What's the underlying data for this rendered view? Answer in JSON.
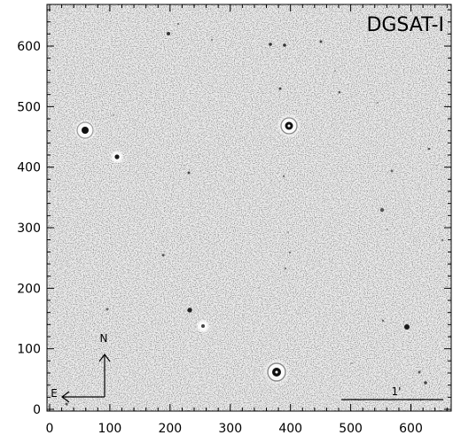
{
  "image": {
    "title": "DGSAT-I",
    "compass": {
      "north": "N",
      "east": "E"
    },
    "scale_bar": {
      "label": "1'"
    },
    "x_axis": {
      "ticks": [
        "0",
        "100",
        "200",
        "300",
        "400",
        "500",
        "600"
      ]
    },
    "y_axis": {
      "ticks": [
        "0",
        "100",
        "200",
        "300",
        "400",
        "500",
        "600"
      ]
    },
    "colors": {
      "background": "#f2f2f2",
      "ink": "#000000",
      "halo": "#ffffff"
    }
  }
}
